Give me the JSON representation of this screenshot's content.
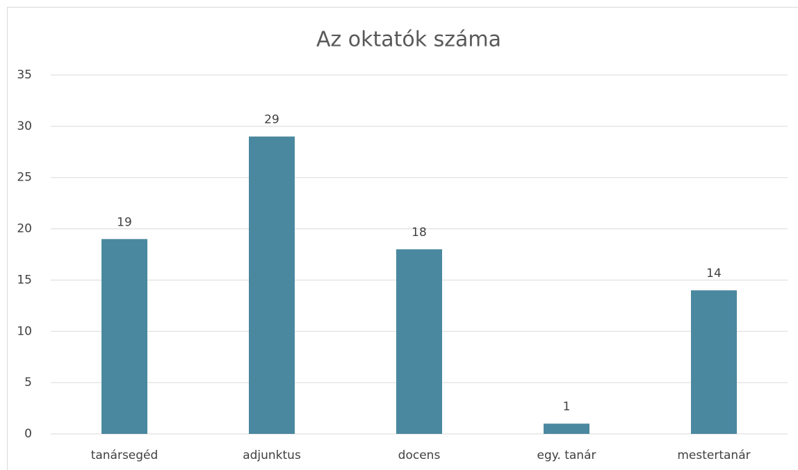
{
  "chart_data": {
    "type": "bar",
    "title": "Az oktatók száma",
    "categories": [
      "tanársegéd",
      "adjunktus",
      "docens",
      "egy. tanár",
      "mestertanár"
    ],
    "values": [
      19,
      29,
      18,
      1,
      14
    ],
    "color": "#4a889f",
    "ylim": [
      0,
      35
    ],
    "yticks": [
      0,
      5,
      10,
      15,
      20,
      25,
      30,
      35
    ],
    "grid": true,
    "data_labels": true
  }
}
